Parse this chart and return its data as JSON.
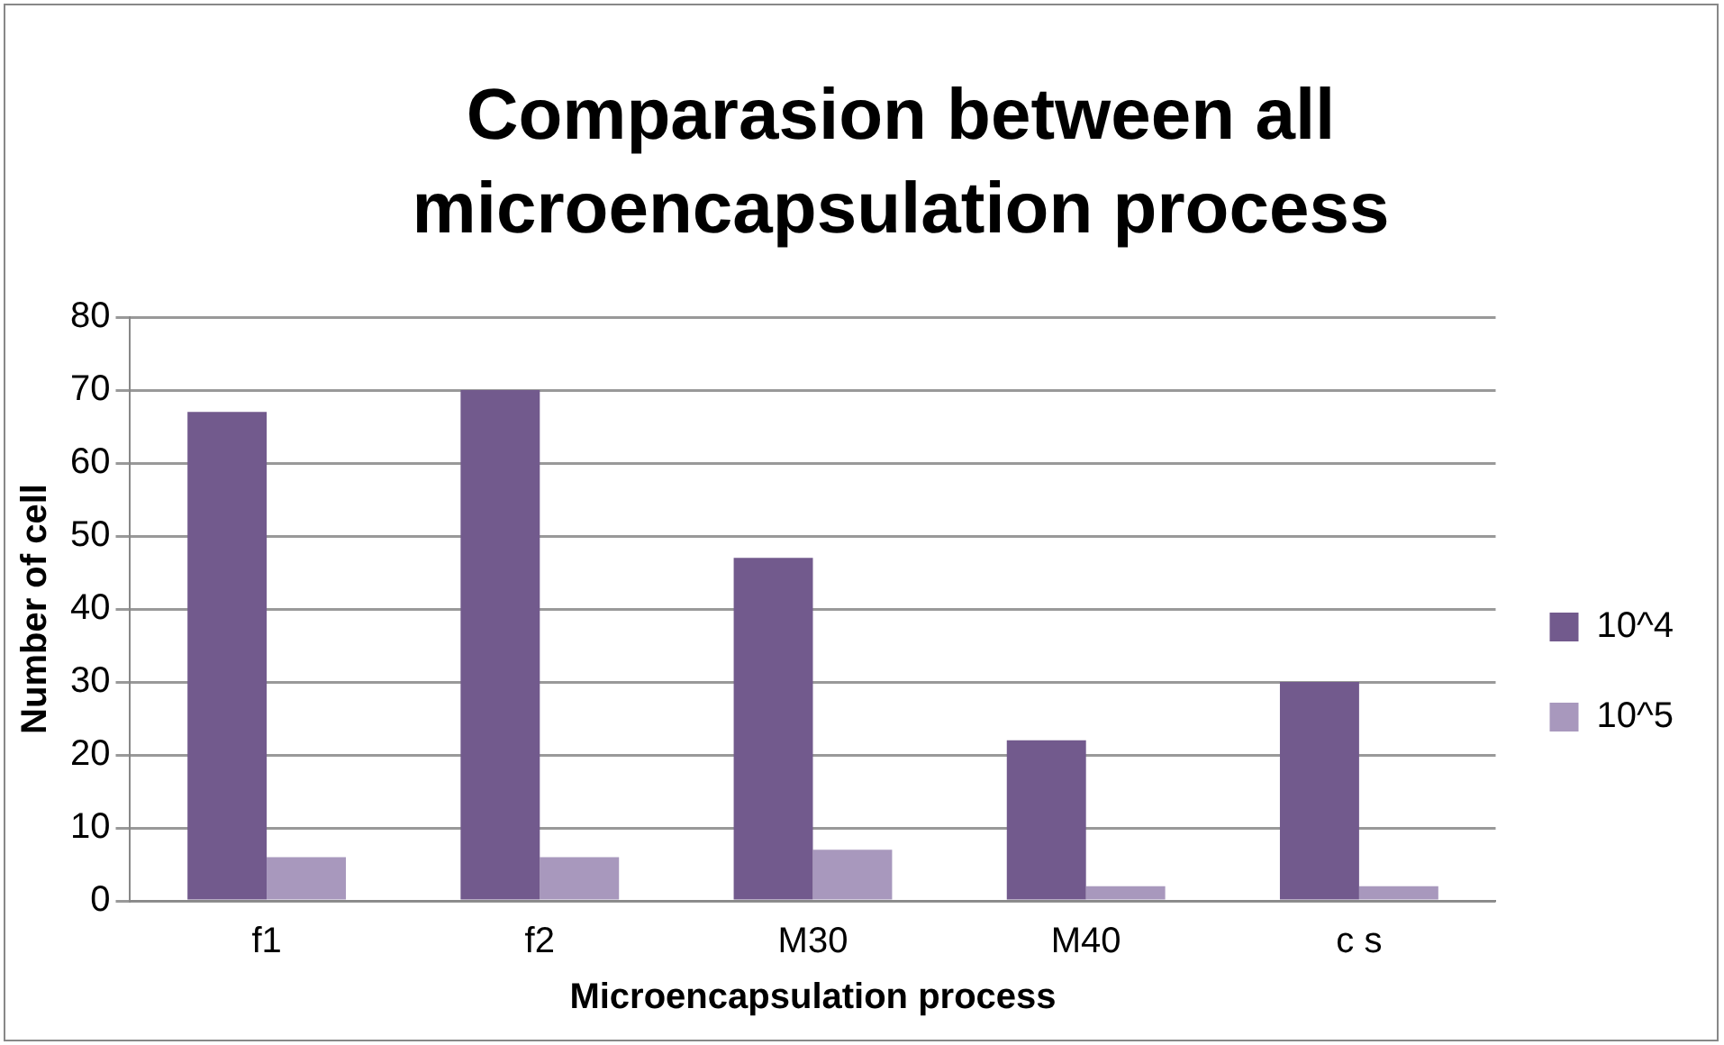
{
  "chart_data": {
    "type": "bar",
    "title": "Comparasion between all microencapsulation process",
    "xlabel": "Microencapsulation process",
    "ylabel": "Number of cell",
    "categories": [
      "f1",
      "f2",
      "M30",
      "M40",
      "c s"
    ],
    "series": [
      {
        "name": "10^4",
        "color": "#725a8d",
        "values": [
          67,
          70,
          47,
          22,
          30
        ]
      },
      {
        "name": "10^5",
        "color": "#a898bd",
        "values": [
          6,
          6,
          7,
          2,
          2
        ]
      }
    ],
    "ylim": [
      0,
      80
    ],
    "yticks": [
      0,
      10,
      20,
      30,
      40,
      50,
      60,
      70,
      80
    ],
    "grid": "y",
    "legend": "right"
  }
}
